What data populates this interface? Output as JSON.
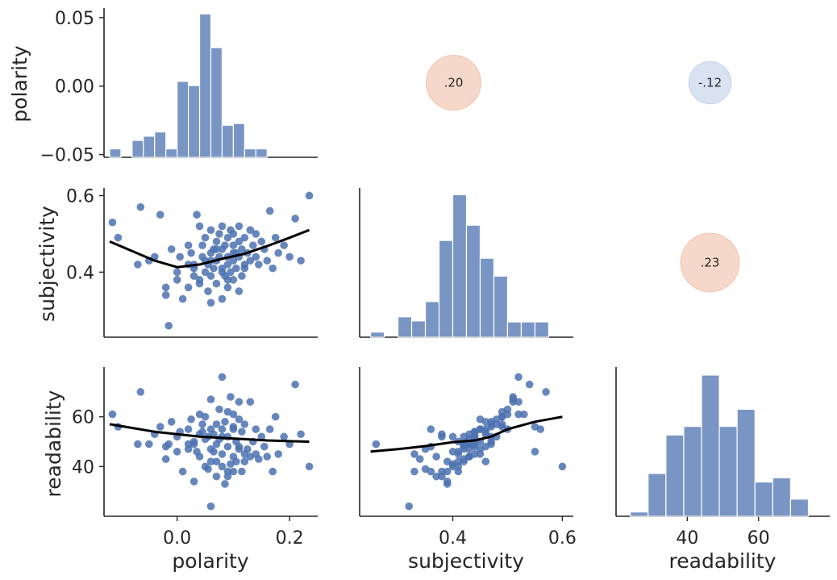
{
  "chart_data": {
    "type": "pairgrid",
    "variables": [
      "polarity",
      "subjectivity",
      "readability"
    ],
    "axis_labels": {
      "polarity": "polarity",
      "subjectivity": "subjectivity",
      "readability": "readability"
    },
    "ranges": {
      "polarity": [
        -0.13,
        0.25
      ],
      "subjectivity": [
        0.23,
        0.62
      ],
      "readability": [
        20,
        80
      ]
    },
    "ticks": {
      "polarity": {
        "values": [
          0.0,
          0.2
        ],
        "labels": [
          "0.0",
          "0.2"
        ]
      },
      "polarity_diag": {
        "values": [
          -0.05,
          0.0,
          0.05
        ],
        "labels": [
          "−0.05",
          "0.00",
          "0.05"
        ]
      },
      "subjectivity": {
        "values": [
          0.4,
          0.6
        ],
        "labels": [
          "0.4",
          "0.6"
        ]
      },
      "readability": {
        "values": [
          40,
          60
        ],
        "labels": [
          "40",
          "60"
        ]
      }
    },
    "histograms": {
      "polarity": {
        "edges": [
          -0.12,
          -0.1,
          -0.08,
          -0.06,
          -0.04,
          -0.02,
          0.0,
          0.02,
          0.04,
          0.06,
          0.08,
          0.1,
          0.12,
          0.14,
          0.16,
          0.18,
          0.2,
          0.22,
          0.24
        ],
        "counts": [
          1,
          0,
          2,
          2.5,
          3,
          1,
          9,
          8.5,
          17,
          13,
          3.8,
          4,
          1,
          1,
          0,
          0,
          0,
          0
        ]
      },
      "subjectivity": {
        "edges": [
          0.25,
          0.275,
          0.3,
          0.325,
          0.35,
          0.375,
          0.4,
          0.425,
          0.45,
          0.475,
          0.5,
          0.525,
          0.55,
          0.575,
          0.6
        ],
        "counts": [
          1,
          0,
          4,
          3.2,
          7,
          19,
          28,
          22,
          15.5,
          12,
          3,
          3,
          3,
          0
        ]
      },
      "readability": {
        "edges": [
          24,
          29,
          34,
          39,
          44,
          49,
          54,
          59,
          64,
          69,
          74
        ],
        "counts": [
          1,
          10,
          19,
          21,
          33,
          21,
          25,
          8,
          9,
          4
        ]
      }
    },
    "correlations": [
      {
        "row": "polarity",
        "col": "subjectivity",
        "label": ".20",
        "value": 0.2,
        "color": "#e8a889"
      },
      {
        "row": "polarity",
        "col": "readability",
        "label": "-.12",
        "value": -0.12,
        "color": "#aabfe0"
      },
      {
        "row": "subjectivity",
        "col": "readability",
        "label": ".23",
        "value": 0.23,
        "color": "#e8a889"
      }
    ],
    "lowess": {
      "polarity_subjectivity": [
        [
          -0.12,
          0.48
        ],
        [
          -0.08,
          0.455
        ],
        [
          -0.04,
          0.43
        ],
        [
          0.0,
          0.413
        ],
        [
          0.04,
          0.42
        ],
        [
          0.08,
          0.435
        ],
        [
          0.12,
          0.448
        ],
        [
          0.16,
          0.468
        ],
        [
          0.2,
          0.49
        ],
        [
          0.235,
          0.51
        ]
      ],
      "polarity_readability": [
        [
          -0.12,
          57
        ],
        [
          -0.08,
          55.5
        ],
        [
          -0.04,
          54
        ],
        [
          0.0,
          53
        ],
        [
          0.04,
          52
        ],
        [
          0.08,
          51.5
        ],
        [
          0.12,
          51
        ],
        [
          0.16,
          50.5
        ],
        [
          0.2,
          50.2
        ],
        [
          0.235,
          50
        ]
      ],
      "subjectivity_readability": [
        [
          0.25,
          46
        ],
        [
          0.3,
          47
        ],
        [
          0.35,
          48.2
        ],
        [
          0.4,
          49.8
        ],
        [
          0.44,
          50.5
        ],
        [
          0.47,
          52
        ],
        [
          0.5,
          55
        ],
        [
          0.55,
          58
        ],
        [
          0.6,
          60
        ]
      ]
    },
    "points": {
      "polarity": [
        -0.115,
        -0.105,
        -0.07,
        -0.065,
        -0.05,
        -0.03,
        -0.02,
        -0.02,
        -0.015,
        -0.01,
        0.0,
        0.005,
        0.01,
        0.02,
        0.02,
        0.025,
        0.03,
        0.03,
        0.035,
        0.04,
        0.04,
        0.045,
        0.045,
        0.05,
        0.05,
        0.05,
        0.055,
        0.055,
        0.06,
        0.06,
        0.06,
        0.065,
        0.065,
        0.07,
        0.07,
        0.07,
        0.075,
        0.075,
        0.08,
        0.08,
        0.08,
        0.08,
        0.085,
        0.085,
        0.09,
        0.09,
        0.09,
        0.09,
        0.095,
        0.095,
        0.1,
        0.1,
        0.1,
        0.1,
        0.105,
        0.105,
        0.11,
        0.11,
        0.11,
        0.115,
        0.115,
        0.12,
        0.12,
        0.125,
        0.13,
        0.13,
        0.135,
        0.14,
        0.14,
        0.145,
        0.15,
        0.155,
        0.16,
        0.165,
        0.17,
        0.175,
        0.18,
        0.19,
        0.2,
        0.21,
        0.22,
        0.235,
        -0.04,
        0.0,
        0.02,
        0.04,
        0.06,
        0.08,
        0.1,
        0.12,
        0.06,
        0.09,
        0.11,
        0.07,
        0.03
      ],
      "subjectivity": [
        0.53,
        0.49,
        0.42,
        0.57,
        0.43,
        0.55,
        0.36,
        0.34,
        0.26,
        0.46,
        0.38,
        0.44,
        0.33,
        0.42,
        0.36,
        0.45,
        0.41,
        0.39,
        0.55,
        0.52,
        0.37,
        0.44,
        0.47,
        0.4,
        0.43,
        0.49,
        0.35,
        0.42,
        0.45,
        0.51,
        0.39,
        0.46,
        0.41,
        0.37,
        0.48,
        0.43,
        0.5,
        0.44,
        0.33,
        0.41,
        0.46,
        0.52,
        0.39,
        0.47,
        0.42,
        0.49,
        0.36,
        0.44,
        0.4,
        0.51,
        0.43,
        0.47,
        0.38,
        0.5,
        0.45,
        0.41,
        0.48,
        0.44,
        0.52,
        0.39,
        0.46,
        0.42,
        0.49,
        0.45,
        0.43,
        0.51,
        0.47,
        0.44,
        0.5,
        0.42,
        0.48,
        0.46,
        0.43,
        0.56,
        0.41,
        0.49,
        0.45,
        0.47,
        0.44,
        0.54,
        0.43,
        0.6,
        0.44,
        0.4,
        0.47,
        0.38,
        0.43,
        0.4,
        0.45,
        0.41,
        0.32,
        0.38,
        0.35,
        0.46,
        0.42
      ],
      "readability": [
        61,
        56,
        49,
        70,
        49,
        56,
        48,
        43,
        49,
        58,
        52,
        54,
        38,
        47,
        55,
        59,
        50,
        34,
        46,
        61,
        44,
        54,
        57,
        40,
        51,
        60,
        39,
        52,
        55,
        67,
        42,
        53,
        46,
        36,
        57,
        49,
        63,
        51,
        45,
        40,
        55,
        76,
        33,
        58,
        48,
        62,
        38,
        52,
        41,
        68,
        44,
        56,
        38,
        61,
        50,
        42,
        59,
        48,
        66,
        38,
        54,
        42,
        57,
        47,
        44,
        66,
        50,
        45,
        55,
        43,
        52,
        48,
        44,
        55,
        38,
        60,
        45,
        52,
        49,
        73,
        53,
        40,
        53,
        46,
        49,
        53,
        47,
        52,
        55,
        45,
        24,
        36,
        47,
        42,
        49
      ]
    }
  }
}
